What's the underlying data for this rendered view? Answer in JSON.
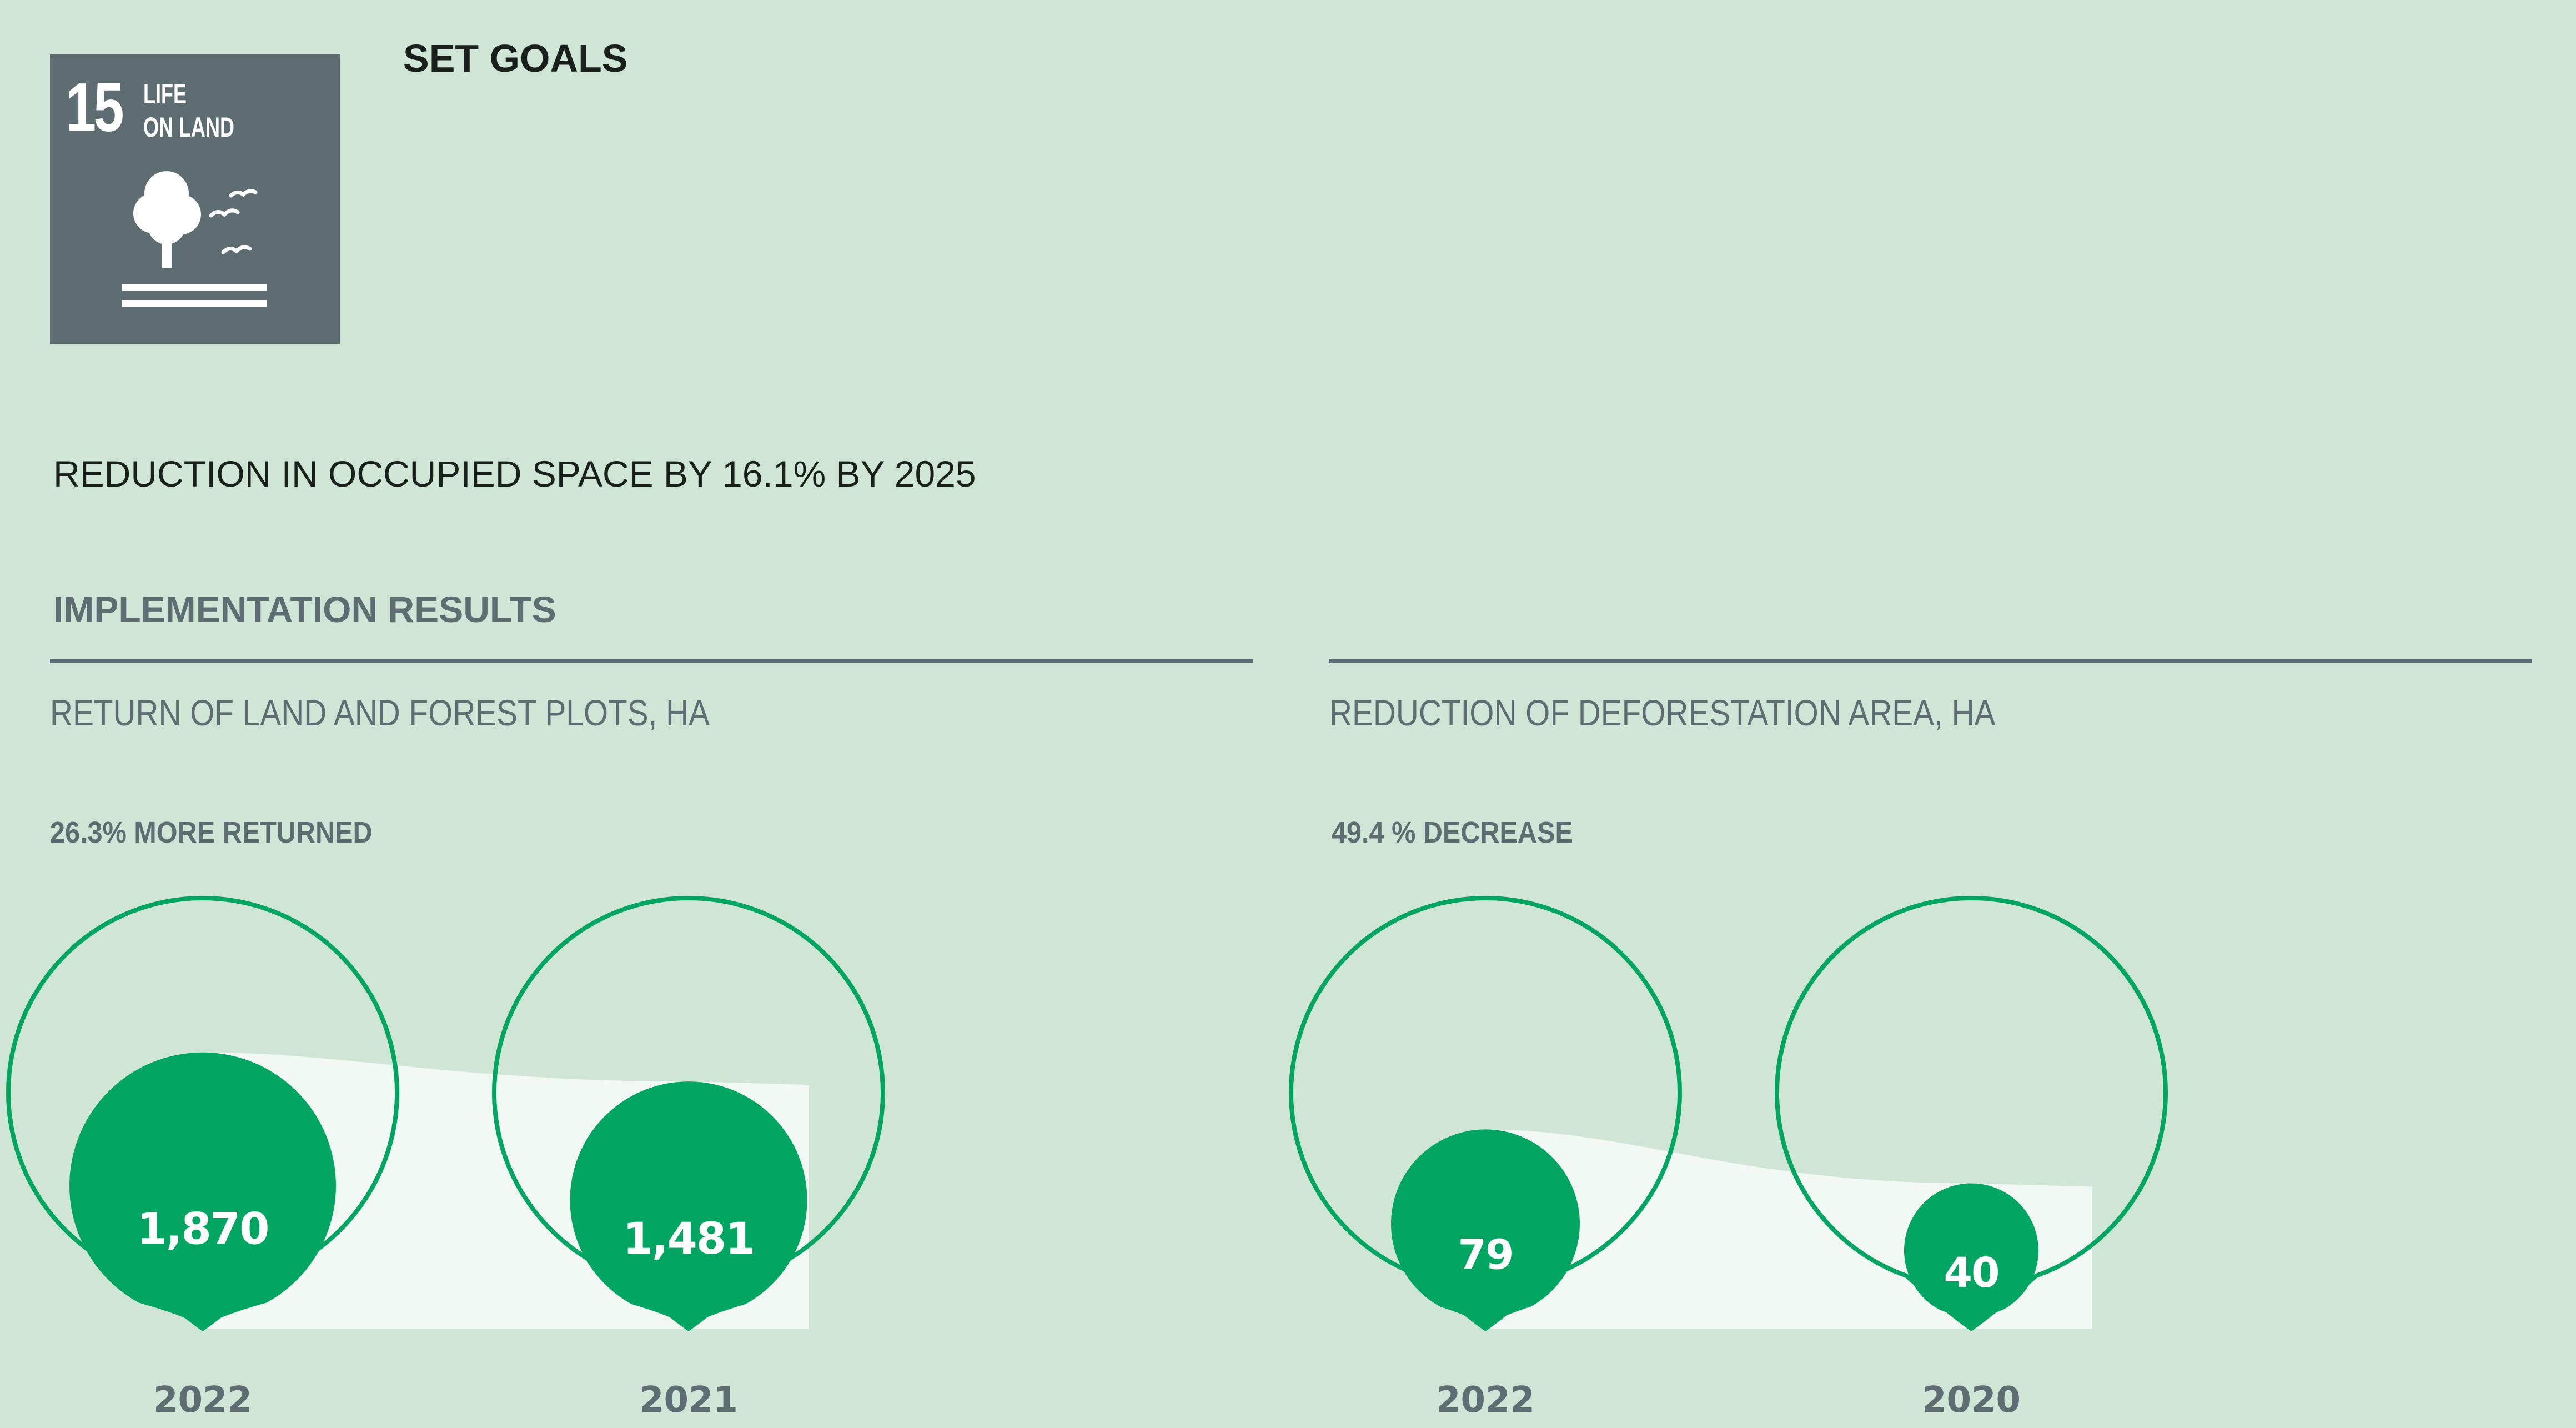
{
  "sdg_badge": {
    "number": "15",
    "label_line1": "LIFE",
    "label_line2": "ON LAND",
    "icon": "tree-birds-icon",
    "color": "#5e6d72"
  },
  "set_goals": {
    "title": "SET GOALS"
  },
  "goal": {
    "text": "REDUCTION IN OCCUPIED SPACE BY 16.1% BY 2025"
  },
  "results": {
    "title": "IMPLEMENTATION RESULTS"
  },
  "colors": {
    "background": "#cfe6d6",
    "accent_green": "#00a562",
    "slate": "#5e6d72",
    "wave_fill": "#f2f8f3"
  },
  "chart_data": [
    {
      "type": "bubble",
      "title": "RETURN OF LAND AND FOREST PLOTS, HA",
      "annotation": "26.3% MORE RETURNED",
      "categories": [
        "2022",
        "2021"
      ],
      "values": [
        1870,
        1481
      ],
      "value_labels": [
        "1,870",
        "1,481"
      ]
    },
    {
      "type": "bubble",
      "title": "REDUCTION OF DEFORESTATION AREA, HA",
      "annotation": "49.4 % DECREASE",
      "categories": [
        "2022",
        "2020"
      ],
      "values": [
        79,
        40
      ],
      "value_labels": [
        "79",
        "40"
      ]
    }
  ]
}
